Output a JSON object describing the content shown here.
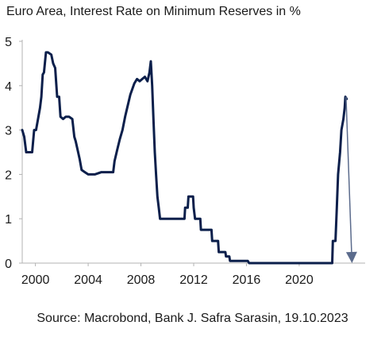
{
  "chart_data": {
    "type": "line",
    "title": "Euro Area, Interest Rate on Minimum Reserves in %",
    "xlabel": "",
    "ylabel": "",
    "xlim": [
      1999,
      2025
    ],
    "ylim": [
      0,
      5
    ],
    "x_ticks": [
      "2000",
      "2004",
      "2008",
      "2012",
      "2016",
      "2020"
    ],
    "y_ticks": [
      "0",
      "1",
      "2",
      "3",
      "4",
      "5"
    ],
    "grid": false,
    "legend": "none",
    "series": [
      {
        "color": "#0b1f4b",
        "points": [
          [
            1999.0,
            3.0
          ],
          [
            1999.15,
            2.85
          ],
          [
            1999.3,
            2.5
          ],
          [
            1999.55,
            2.5
          ],
          [
            1999.75,
            2.5
          ],
          [
            1999.9,
            3.0
          ],
          [
            2000.05,
            3.0
          ],
          [
            2000.2,
            3.25
          ],
          [
            2000.35,
            3.5
          ],
          [
            2000.45,
            3.75
          ],
          [
            2000.55,
            4.25
          ],
          [
            2000.65,
            4.3
          ],
          [
            2000.8,
            4.75
          ],
          [
            2000.95,
            4.75
          ],
          [
            2001.2,
            4.7
          ],
          [
            2001.35,
            4.5
          ],
          [
            2001.5,
            4.4
          ],
          [
            2001.65,
            3.75
          ],
          [
            2001.8,
            3.75
          ],
          [
            2001.9,
            3.3
          ],
          [
            2002.1,
            3.25
          ],
          [
            2002.3,
            3.3
          ],
          [
            2002.55,
            3.3
          ],
          [
            2002.8,
            3.25
          ],
          [
            2002.95,
            2.85
          ],
          [
            2003.05,
            2.75
          ],
          [
            2003.2,
            2.55
          ],
          [
            2003.35,
            2.35
          ],
          [
            2003.5,
            2.1
          ],
          [
            2003.75,
            2.05
          ],
          [
            2004.0,
            2.0
          ],
          [
            2004.5,
            2.0
          ],
          [
            2005.0,
            2.05
          ],
          [
            2005.9,
            2.05
          ],
          [
            2006.0,
            2.3
          ],
          [
            2006.2,
            2.55
          ],
          [
            2006.4,
            2.8
          ],
          [
            2006.6,
            3.0
          ],
          [
            2006.8,
            3.3
          ],
          [
            2007.0,
            3.55
          ],
          [
            2007.2,
            3.8
          ],
          [
            2007.5,
            4.05
          ],
          [
            2007.7,
            4.15
          ],
          [
            2007.9,
            4.1
          ],
          [
            2008.1,
            4.15
          ],
          [
            2008.3,
            4.2
          ],
          [
            2008.5,
            4.1
          ],
          [
            2008.65,
            4.3
          ],
          [
            2008.75,
            4.55
          ],
          [
            2008.85,
            4.0
          ],
          [
            2008.95,
            3.25
          ],
          [
            2009.05,
            2.5
          ],
          [
            2009.15,
            2.0
          ],
          [
            2009.25,
            1.5
          ],
          [
            2009.35,
            1.25
          ],
          [
            2009.45,
            1.0
          ],
          [
            2010.0,
            1.0
          ],
          [
            2011.0,
            1.0
          ],
          [
            2011.3,
            1.0
          ],
          [
            2011.35,
            1.25
          ],
          [
            2011.55,
            1.25
          ],
          [
            2011.6,
            1.5
          ],
          [
            2011.95,
            1.5
          ],
          [
            2012.0,
            1.25
          ],
          [
            2012.1,
            1.0
          ],
          [
            2012.5,
            1.0
          ],
          [
            2012.55,
            0.75
          ],
          [
            2013.35,
            0.75
          ],
          [
            2013.4,
            0.5
          ],
          [
            2013.85,
            0.5
          ],
          [
            2013.9,
            0.25
          ],
          [
            2014.4,
            0.25
          ],
          [
            2014.45,
            0.15
          ],
          [
            2014.7,
            0.15
          ],
          [
            2014.75,
            0.05
          ],
          [
            2016.1,
            0.05
          ],
          [
            2016.2,
            0.0
          ],
          [
            2018.0,
            0.0
          ],
          [
            2020.0,
            0.0
          ],
          [
            2022.5,
            0.0
          ],
          [
            2022.55,
            0.5
          ],
          [
            2022.75,
            0.5
          ],
          [
            2022.85,
            1.25
          ],
          [
            2022.95,
            2.0
          ],
          [
            2023.1,
            2.5
          ],
          [
            2023.2,
            3.0
          ],
          [
            2023.35,
            3.25
          ],
          [
            2023.45,
            3.5
          ],
          [
            2023.5,
            3.75
          ],
          [
            2023.6,
            3.7
          ]
        ]
      }
    ],
    "annotations": [
      {
        "type": "arrow",
        "from": [
          2023.55,
          3.75
        ],
        "to": [
          2024.0,
          0.0
        ],
        "color": "#5b6b8c"
      }
    ]
  },
  "source_text": "Source: Macrobond, Bank J. Safra Sarasin, 19.10.2023"
}
